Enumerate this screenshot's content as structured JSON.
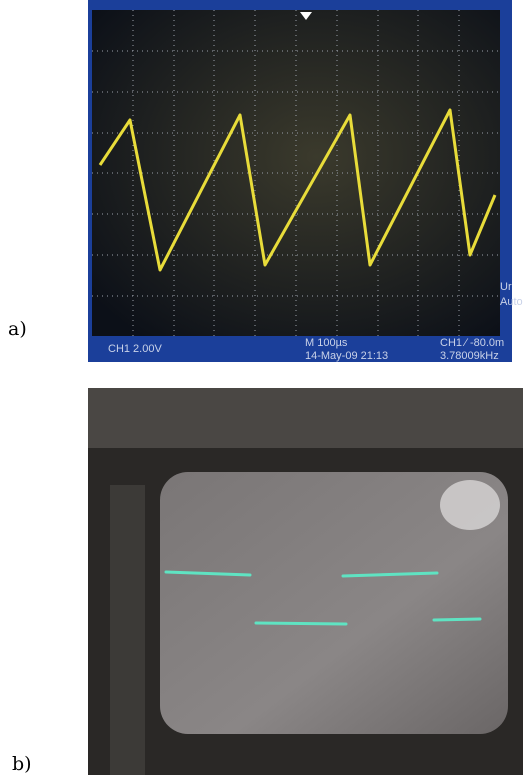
{
  "figure": {
    "panels": [
      {
        "label": "a)",
        "scope_texts": {
          "channel": "CH1  2.00V",
          "timebase": "M 100µs",
          "datetime": "14-May-09 21:13",
          "trigger": "CH1 ∕ -80.0m",
          "frequency": "3.78009kHz",
          "side_top": "Ur",
          "side_bottom": "Auto"
        }
      },
      {
        "label": "b)"
      }
    ]
  }
}
